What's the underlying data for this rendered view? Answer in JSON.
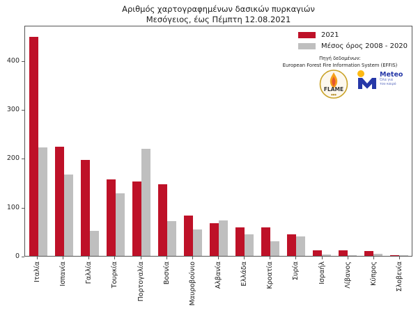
{
  "title": {
    "line1": "Αριθμός χαρτογραφημένων δασικών πυρκαγιών",
    "line2": "Μεσόγειος, έως Πέμπτη 12.08.2021"
  },
  "legend": {
    "items": [
      {
        "label": "2021",
        "color": "#BE1128"
      },
      {
        "label": "Μέσος όρος 2008 - 2020",
        "color": "#BFBFBF"
      }
    ]
  },
  "source": {
    "line1": "Πηγή δεδομένων:",
    "line2": "European Forest Fire Information System (EFFIS)"
  },
  "logos": {
    "flame_label": "FLAME",
    "meteo_name": "Meteo",
    "meteo_tagline_line1": "Όλα για",
    "meteo_tagline_line2": "τον καιρό"
  },
  "axes": {
    "y_ticks": [
      0,
      100,
      200,
      300,
      400
    ],
    "y_max": 472
  },
  "colors": {
    "bar_2021": "#BE1128",
    "bar_avg": "#BFBFBF",
    "spine": "#555555"
  },
  "chart_data": {
    "type": "bar",
    "title": "Αριθμός χαρτογραφημένων δασικών πυρκαγιών",
    "subtitle": "Μεσόγειος, έως Πέμπτη 12.08.2021",
    "categories": [
      "Ιταλία",
      "Ισπανία",
      "Γαλλία",
      "Τουρκία",
      "Πορτογαλία",
      "Βοσνία",
      "Μαυροβούνιο",
      "Αλβανία",
      "Ελλάδα",
      "Κροατία",
      "Συρία",
      "Ισραήλ",
      "Λίβανος",
      "Κύπρος",
      "Σλοβενία"
    ],
    "series": [
      {
        "name": "2021",
        "color": "#BE1128",
        "values": [
          450,
          225,
          198,
          158,
          153,
          147,
          83,
          67,
          58,
          58,
          45,
          12,
          12,
          10,
          2
        ]
      },
      {
        "name": "Μέσος όρος 2008 - 2020",
        "color": "#BFBFBF",
        "values": [
          223,
          167,
          52,
          129,
          221,
          72,
          54,
          73,
          45,
          30,
          40,
          3,
          2,
          4,
          1
        ]
      }
    ],
    "xlabel": "",
    "ylabel": "",
    "ylim": [
      0,
      472
    ],
    "y_ticks": [
      0,
      100,
      200,
      300,
      400
    ],
    "grid": false,
    "legend_position": "upper right"
  }
}
